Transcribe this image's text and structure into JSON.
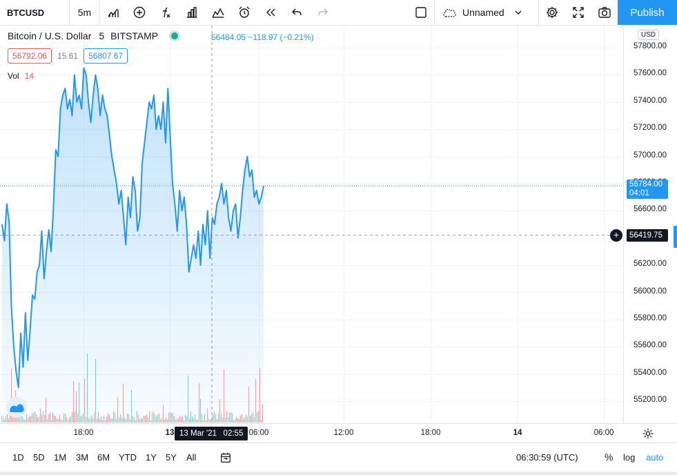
{
  "toolbar": {
    "symbol": "BTCUSD",
    "interval": "5m",
    "layout_name": "Unnamed",
    "publish_label": "Publish",
    "icons": [
      "bar-style-icon",
      "compare-add-icon",
      "indicators-icon",
      "financials-icon",
      "templates-icon",
      "alert-icon",
      "replay-icon",
      "undo-icon",
      "redo-icon",
      "checkbox-icon",
      "cloud-icon",
      "chevron-down-icon",
      "settings-icon",
      "fullscreen-icon",
      "snapshot-icon"
    ]
  },
  "legend": {
    "title": "Bitcoin / U.S. Dollar",
    "interval": "5",
    "exchange": "BITSTAMP",
    "ohlc_text": "56484.05  −118.97 (−0.21%)",
    "bid": "56792.06",
    "spread": "15.61",
    "ask": "56807.67",
    "vol_label": "Vol",
    "vol_value": "14"
  },
  "price_scale": {
    "currency": "USD",
    "ticks": [
      "57800.00",
      "57600.00",
      "57400.00",
      "57200.00",
      "57000.00",
      "56800.00",
      "56600.00",
      "56400.00",
      "56200.00",
      "56000.00",
      "55800.00",
      "55600.00",
      "55400.00",
      "55200.00"
    ],
    "last_price": "56784.00",
    "countdown": "04:01",
    "crosshair_price": "56419.75"
  },
  "time_axis": {
    "labels": [
      "18:00",
      "13",
      "06:00",
      "12:00",
      "18:00",
      "14",
      "06:00"
    ],
    "crosshair_time": "13 Mar '21   02:55"
  },
  "bottom_bar": {
    "ranges": [
      "1D",
      "5D",
      "1M",
      "3M",
      "6M",
      "YTD",
      "1Y",
      "5Y",
      "All"
    ],
    "clock": "06:30:59 (UTC)",
    "percent_label": "%",
    "log_label": "log",
    "auto_label": "auto"
  },
  "colors": {
    "accent": "#2196f3",
    "line": "#2196f3",
    "volume_up": "#26a69a",
    "volume_down": "#ef5350",
    "crosshair": "#131722"
  },
  "chart_data": {
    "type": "area",
    "symbol": "BTCUSD",
    "ylim": [
      55050,
      57900
    ],
    "x_label_ticks": [
      "18:00",
      "13",
      "06:00",
      "12:00",
      "18:00",
      "14",
      "06:00"
    ],
    "y": [
      56500,
      56380,
      56650,
      56520,
      55900,
      55600,
      55420,
      55300,
      55700,
      55450,
      55850,
      55500,
      55720,
      55980,
      55950,
      56150,
      56200,
      56450,
      56100,
      56300,
      56460,
      56300,
      56620,
      57050,
      57000,
      57350,
      57450,
      57500,
      57350,
      57420,
      57300,
      57600,
      57400,
      57450,
      57350,
      57650,
      57600,
      57400,
      57250,
      57450,
      57600,
      57500,
      57300,
      57450,
      57350,
      57300,
      57150,
      57000,
      56900,
      56800,
      56650,
      56750,
      56550,
      56350,
      56700,
      56550,
      56850,
      56750,
      56450,
      56550,
      56950,
      57100,
      57250,
      57400,
      57350,
      57450,
      57200,
      57300,
      57200,
      57400,
      57100,
      57500,
      57150,
      56800,
      56650,
      56450,
      56750,
      56600,
      56700,
      56500,
      56150,
      56250,
      56350,
      56250,
      56450,
      56200,
      56500,
      56350,
      56600,
      56250,
      56550,
      56500,
      56650,
      56700,
      56800,
      56650,
      56750,
      56550,
      56450,
      56600,
      56650,
      56400,
      56550,
      56750,
      56900,
      57000,
      56850,
      56900,
      56700,
      56750,
      56650,
      56700,
      56784
    ]
  }
}
